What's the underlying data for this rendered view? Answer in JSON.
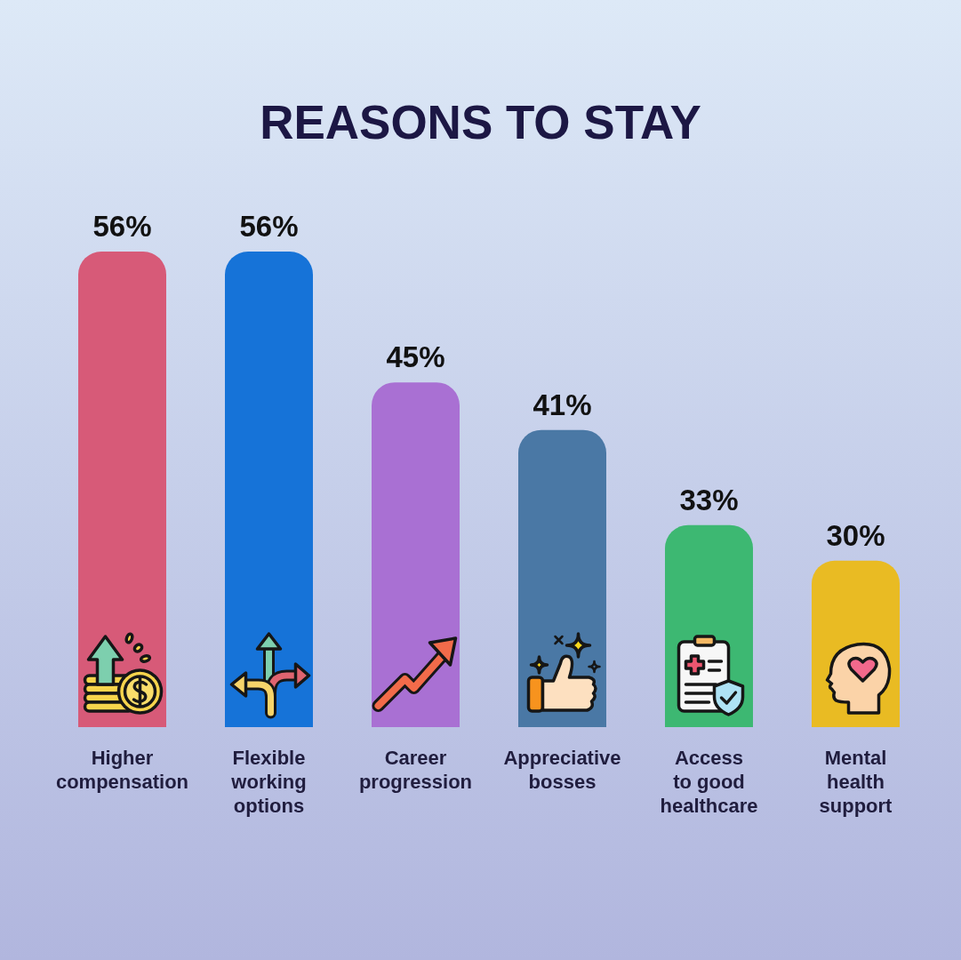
{
  "chart_data": {
    "type": "bar",
    "title": "REASONS TO STAY",
    "categories": [
      "Higher\ncompensation",
      "Flexible\nworking\noptions",
      "Career\nprogression",
      "Appreciative\nbosses",
      "Access\nto good\nhealthcare",
      "Mental\nhealth\nsupport"
    ],
    "values": [
      56,
      56,
      45,
      41,
      33,
      30
    ],
    "colors": [
      "#d75a78",
      "#1673d8",
      "#a970d3",
      "#4a78a5",
      "#3db872",
      "#e9bb23"
    ],
    "value_labels": [
      "56%",
      "56%",
      "45%",
      "41%",
      "33%",
      "30%"
    ],
    "ylim": [
      16,
      56
    ],
    "tick_labels": "x"
  }
}
